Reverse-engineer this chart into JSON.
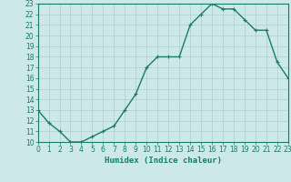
{
  "x": [
    0,
    1,
    2,
    3,
    4,
    5,
    6,
    7,
    8,
    9,
    10,
    11,
    12,
    13,
    14,
    15,
    16,
    17,
    18,
    19,
    20,
    21,
    22,
    23
  ],
  "y": [
    13.0,
    11.8,
    11.0,
    10.0,
    10.0,
    10.5,
    11.0,
    11.5,
    13.0,
    14.5,
    17.0,
    18.0,
    18.0,
    18.0,
    21.0,
    22.0,
    23.0,
    22.5,
    22.5,
    21.5,
    20.5,
    20.5,
    17.5,
    16.0
  ],
  "line_color": "#1a7a6e",
  "marker": "+",
  "marker_size": 3,
  "bg_color": "#cce8e8",
  "grid_color": "#b0cccc",
  "xlabel": "Humidex (Indice chaleur)",
  "xlim": [
    0,
    23
  ],
  "ylim": [
    10,
    23
  ],
  "yticks": [
    10,
    11,
    12,
    13,
    14,
    15,
    16,
    17,
    18,
    19,
    20,
    21,
    22,
    23
  ],
  "xticks": [
    0,
    1,
    2,
    3,
    4,
    5,
    6,
    7,
    8,
    9,
    10,
    11,
    12,
    13,
    14,
    15,
    16,
    17,
    18,
    19,
    20,
    21,
    22,
    23
  ],
  "tick_fontsize": 5.5,
  "xlabel_fontsize": 6.5,
  "line_width": 1.0
}
